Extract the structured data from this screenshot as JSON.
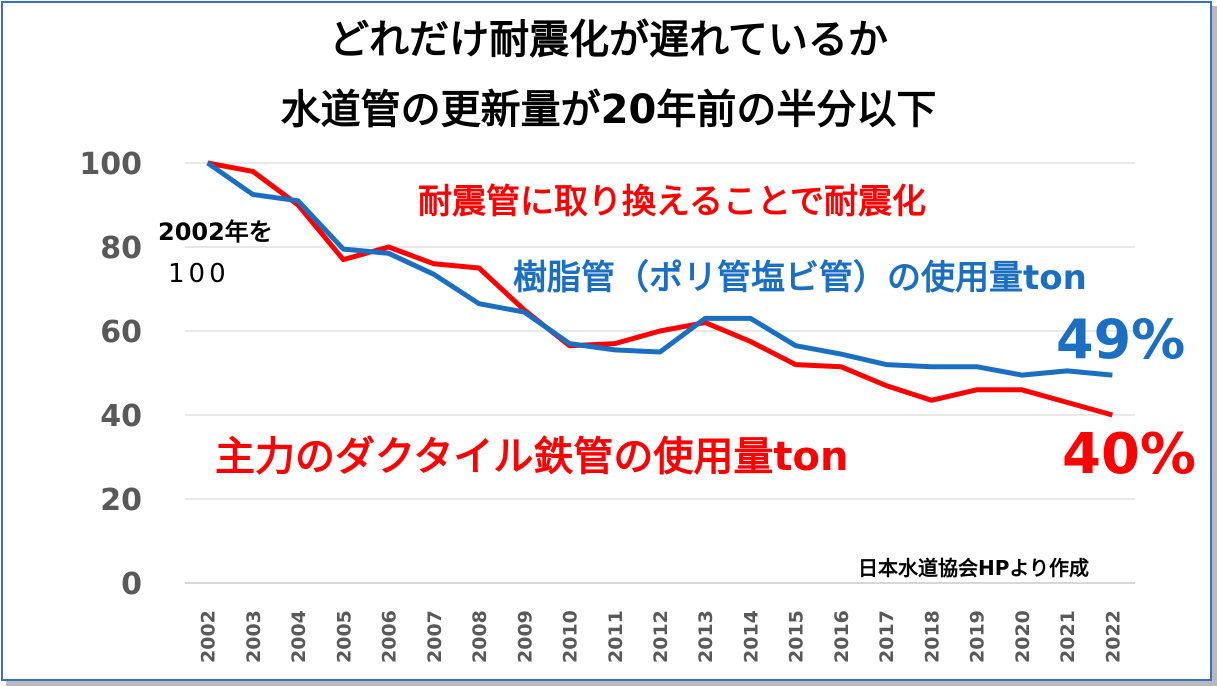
{
  "title_line1": "どれだけ耐震化が遅れているか",
  "title_line2": "水道管の更新量が20年前の半分以下",
  "annotations": {
    "base_line1": "2002年を",
    "base_line2": "100",
    "seismic": "耐震管に取り換えることで耐震化",
    "resin_series": "樹脂管（ポリ管塩ビ管）の使用量ton",
    "resin_pct": "49%",
    "ductile_series": "主力のダクタイル鉄管の使用量ton",
    "ductile_pct": "40%",
    "source": "日本水道協会HPより作成"
  },
  "colors": {
    "ductile": "#ff0000",
    "resin": "#1a6fc2",
    "grid": "#d9d9d9",
    "axis_text": "#595959",
    "frame": "#3a6fc4"
  },
  "chart_data": {
    "type": "line",
    "x": [
      "2002",
      "2003",
      "2004",
      "2005",
      "2006",
      "2007",
      "2008",
      "2009",
      "2010",
      "2011",
      "2012",
      "2013",
      "2014",
      "2015",
      "2016",
      "2017",
      "2018",
      "2019",
      "2020",
      "2021",
      "2022"
    ],
    "ylim": [
      0,
      100
    ],
    "yticks": [
      0,
      20,
      40,
      60,
      80,
      100
    ],
    "grid": true,
    "series": [
      {
        "name": "主力のダクタイル鉄管の使用量ton",
        "color": "#ff0000",
        "values": [
          100,
          98,
          90,
          77,
          80,
          76,
          75,
          65,
          56.5,
          57,
          60,
          62,
          57.5,
          52,
          51.5,
          47,
          43.5,
          46,
          46,
          43,
          40
        ]
      },
      {
        "name": "樹脂管（ポリ管塩ビ管）の使用量ton",
        "color": "#1a6fc2",
        "values": [
          100,
          92.5,
          91,
          79.5,
          78.5,
          73.5,
          66.5,
          64.5,
          57,
          55.5,
          55,
          63,
          63,
          56.5,
          54.5,
          52,
          51.5,
          51.5,
          49.5,
          50.5,
          49.5
        ]
      }
    ]
  }
}
